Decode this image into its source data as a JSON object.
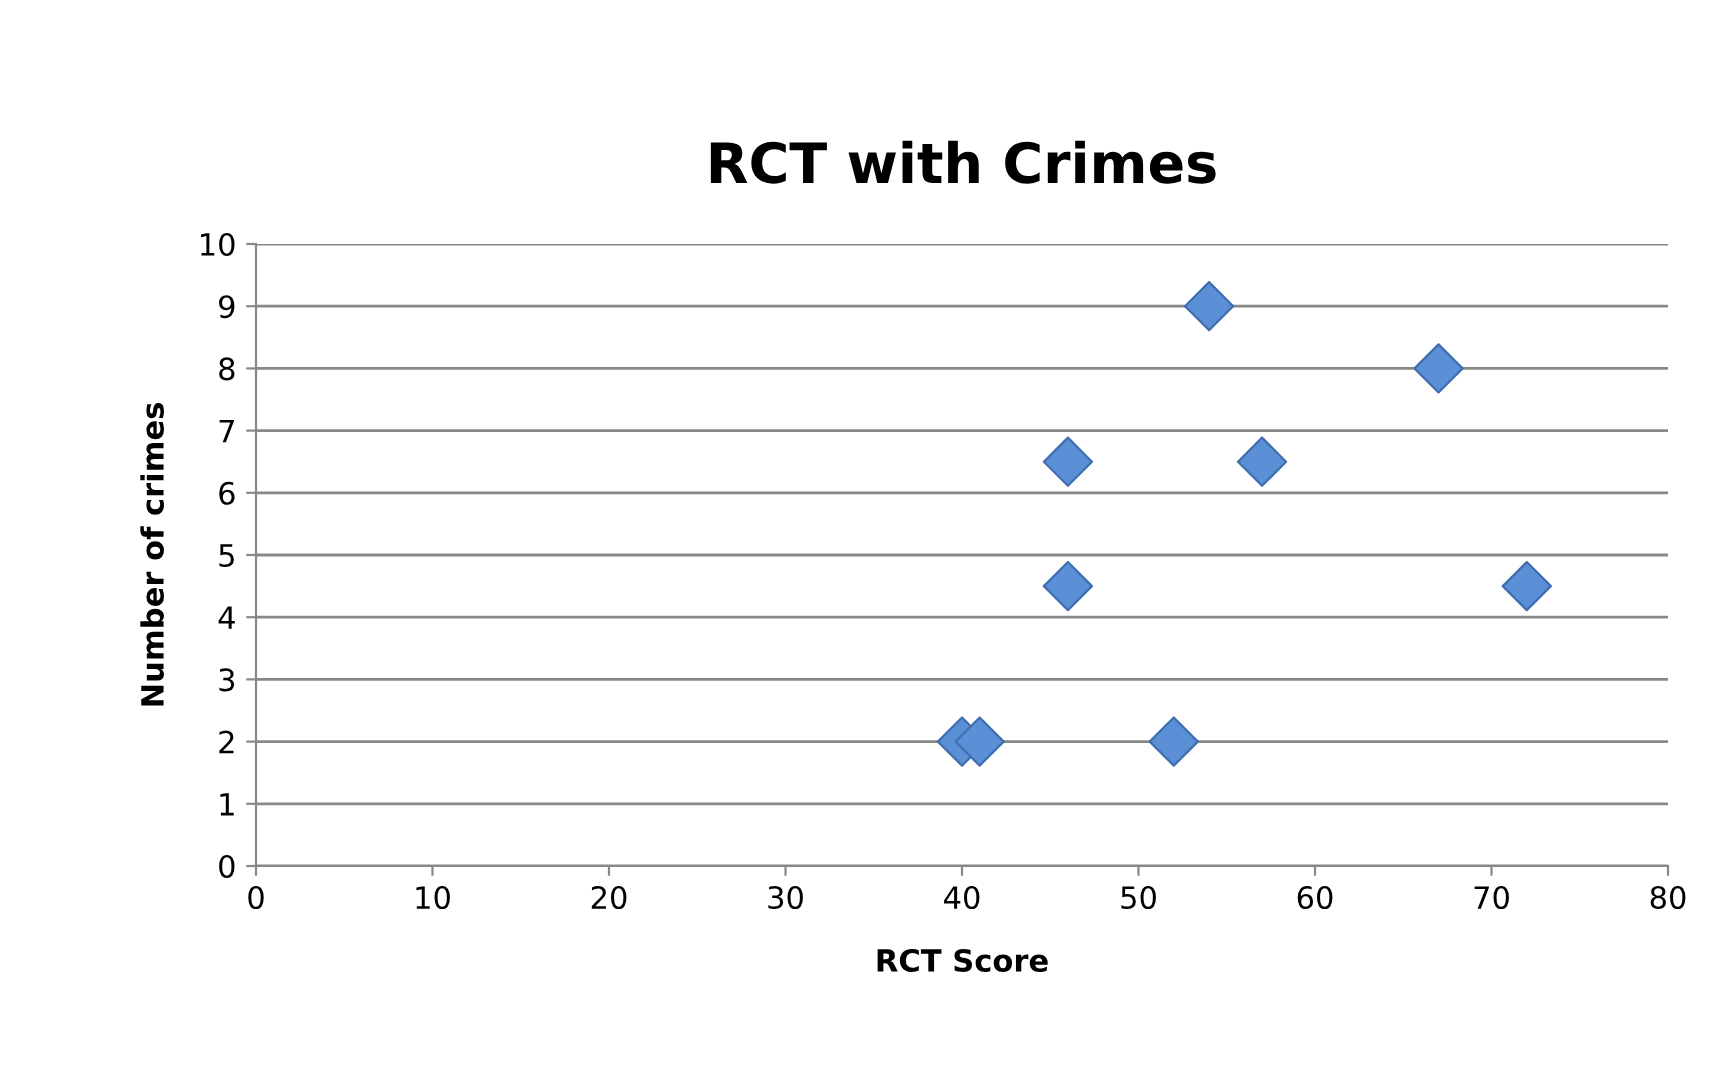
{
  "chart_data": {
    "type": "scatter",
    "title": "RCT with Crimes",
    "xlabel": "RCT Score",
    "ylabel": "Number of crimes",
    "x": [
      40,
      41,
      52,
      54,
      67,
      46,
      57,
      46,
      72
    ],
    "series": [
      {
        "color": "#5b8fd6",
        "values": [
          2,
          2,
          2,
          9,
          8,
          6.5,
          6.5,
          4.5,
          4.5
        ]
      }
    ],
    "xlim": [
      0,
      80
    ],
    "xticks": [
      0,
      10,
      20,
      30,
      40,
      50,
      60,
      70,
      80
    ],
    "ylim": [
      0,
      10
    ],
    "yticks": [
      0,
      1,
      2,
      3,
      4,
      5,
      6,
      7,
      8,
      9,
      10
    ],
    "grid": "y",
    "marker": "diamond",
    "legend": false
  }
}
